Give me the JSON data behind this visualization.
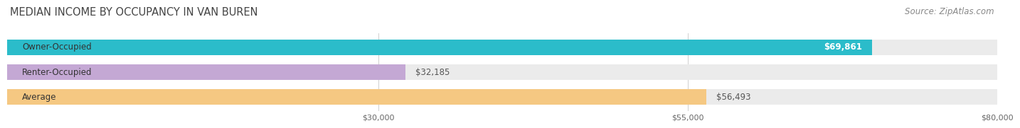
{
  "title": "MEDIAN INCOME BY OCCUPANCY IN VAN BUREN",
  "source": "Source: ZipAtlas.com",
  "categories": [
    "Owner-Occupied",
    "Renter-Occupied",
    "Average"
  ],
  "values": [
    69861,
    32185,
    56493
  ],
  "labels": [
    "$69,861",
    "$32,185",
    "$56,493"
  ],
  "label_inside": [
    true,
    false,
    false
  ],
  "bar_colors": [
    "#2bbcca",
    "#c4a8d4",
    "#f5c882"
  ],
  "bar_bg_colors": [
    "#ebebeb",
    "#ebebeb",
    "#ebebeb"
  ],
  "xmax": 80000,
  "xmin": 0,
  "xticks": [
    30000,
    55000,
    80000
  ],
  "xtick_labels": [
    "$30,000",
    "$55,000",
    "$80,000"
  ],
  "title_fontsize": 10.5,
  "source_fontsize": 8.5,
  "label_fontsize": 8.5,
  "category_fontsize": 8.5,
  "bar_height": 0.62,
  "background_color": "#ffffff",
  "grid_color": "#d0d0d0"
}
